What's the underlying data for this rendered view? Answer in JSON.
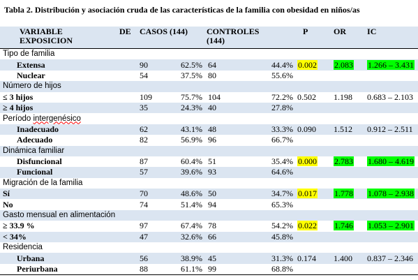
{
  "caption": "Tabla 2.  Distribución y asociación cruda de las características  de la familia con obesidad en niños/as",
  "header": {
    "variable_line1": "VARIABLE",
    "de": "DE",
    "variable_line2": "EXPOSICION",
    "casos": "CASOS (144)",
    "controles_line1": "CONTROLES",
    "controles_line2": "(144)",
    "p": "P",
    "or": "OR",
    "ic": "IC"
  },
  "groups": [
    {
      "label": "Tipo de familia",
      "rows": [
        {
          "label": "Extensa",
          "c_n": "90",
          "c_pct": "62.5%",
          "k_n": "64",
          "k_pct": "44.4%",
          "p": "0.002",
          "or": "2.083",
          "ic": "1.266 – 3.431",
          "hl": true
        },
        {
          "label": "Nuclear",
          "c_n": "54",
          "c_pct": "37.5%",
          "k_n": "80",
          "k_pct": "55.6%"
        }
      ]
    },
    {
      "label": "Número de hijos",
      "rows": [
        {
          "label": "≤ 3 hijos",
          "c_n": "109",
          "c_pct": "75.7%",
          "k_n": "104",
          "k_pct": "72.2%",
          "p": "0.502",
          "or": "1.198",
          "ic": "0.683 – 2.103"
        },
        {
          "label": "≥ 4 hijos",
          "c_n": "35",
          "c_pct": "24.3%",
          "k_n": "40",
          "k_pct": "27.8%"
        }
      ]
    },
    {
      "label_pre": "Período ",
      "label_wavy": "intergenésico",
      "rows": [
        {
          "label": "Inadecuado",
          "c_n": "62",
          "c_pct": "43.1%",
          "k_n": "48",
          "k_pct": "33.3%",
          "p": "0.090",
          "or": "1.512",
          "ic": "0.912 – 2.511"
        },
        {
          "label": "Adecuado",
          "c_n": "82",
          "c_pct": "56.9%",
          "k_n": "96",
          "k_pct": "66.7%"
        }
      ]
    },
    {
      "label": "Dinámica familiar",
      "rows": [
        {
          "label": "Disfuncional",
          "c_n": "87",
          "c_pct": "60.4%",
          "k_n": "51",
          "k_pct": "35.4%",
          "p": "0.000",
          "or": "2.783",
          "ic": "1.680 – 4.619",
          "hl": true
        },
        {
          "label": "Funcional",
          "c_n": "57",
          "c_pct": "39.6%",
          "k_n": "93",
          "k_pct": "64.6%"
        }
      ]
    },
    {
      "label": "Migración de la familia",
      "rows": [
        {
          "label": "Sí",
          "c_n": "70",
          "c_pct": "48.6%",
          "k_n": "50",
          "k_pct": "34.7%",
          "p": "0.017",
          "or": "1.778",
          "ic": "1.078 – 2.938",
          "hl": true
        },
        {
          "label": "No",
          "c_n": "74",
          "c_pct": "51.4%",
          "k_n": "94",
          "k_pct": "65.3%"
        }
      ]
    },
    {
      "label": "Gasto mensual en alimentación",
      "rows": [
        {
          "label": "≥ 33.9 %",
          "c_n": "97",
          "c_pct": "67.4%",
          "k_n": "78",
          "k_pct": "54.2%",
          "p": "0.022",
          "or": "1.746",
          "ic": "1.053 – 2.901",
          "hl": true
        },
        {
          "label": "< 34%",
          "c_n": "47",
          "c_pct": "32.6%",
          "k_n": "66",
          "k_pct": "45.8%"
        }
      ]
    },
    {
      "label": "Residencia",
      "rows": [
        {
          "label": "Urbana",
          "c_n": "56",
          "c_pct": "38.9%",
          "k_n": "45",
          "k_pct": "31.3%",
          "p": "0.174",
          "or": "1.400",
          "ic": "0.837 – 2.346"
        },
        {
          "label": "Periurbana",
          "c_n": "88",
          "c_pct": "61.1%",
          "k_n": "99",
          "k_pct": "68.8%"
        }
      ]
    }
  ],
  "colors": {
    "row_shade": "#dbe5f1",
    "highlight_p": "#ffff00",
    "highlight_or_ic": "#00ff00"
  }
}
